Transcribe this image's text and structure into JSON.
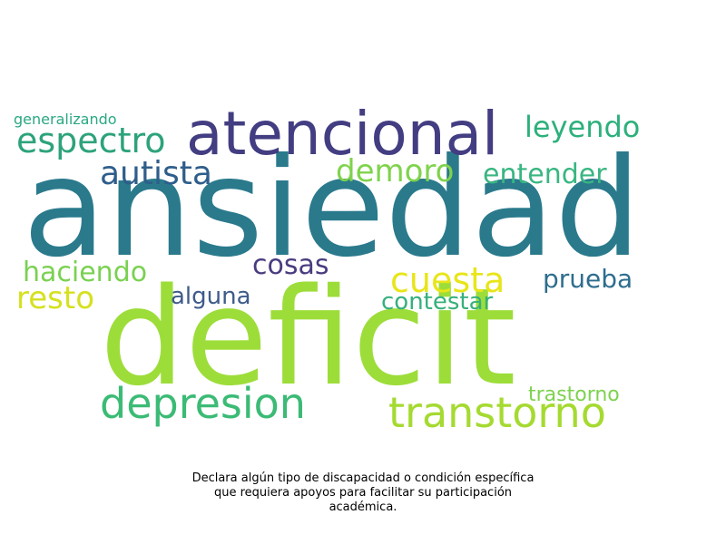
{
  "words": [
    {
      "text": "ansiedad",
      "color": "#2a7a8c"
    },
    {
      "text": "deficit",
      "color": "#9ddd3a"
    },
    {
      "text": "atencional",
      "color": "#433d82"
    },
    {
      "text": "espectro",
      "color": "#2da37a"
    },
    {
      "text": "leyendo",
      "color": "#2db07b"
    },
    {
      "text": "generalizando",
      "color": "#2aa784"
    },
    {
      "text": "autista",
      "color": "#2f5e8b"
    },
    {
      "text": "demoro",
      "color": "#7fd34c"
    },
    {
      "text": "entender",
      "color": "#39b681"
    },
    {
      "text": "haciendo",
      "color": "#7ad151"
    },
    {
      "text": "cosas",
      "color": "#4a3b80"
    },
    {
      "text": "resto",
      "color": "#d5e11f"
    },
    {
      "text": "cuesta",
      "color": "#e8e519"
    },
    {
      "text": "prueba",
      "color": "#2e6d8e"
    },
    {
      "text": "alguna",
      "color": "#3e5b8b"
    },
    {
      "text": "contestar",
      "color": "#35b07c"
    },
    {
      "text": "depresion",
      "color": "#3bbb75"
    },
    {
      "text": "transtorno",
      "color": "#a5da31"
    },
    {
      "text": "trastorno",
      "color": "#7dd250"
    }
  ],
  "caption": {
    "line1": "Declara algún tipo de discapacidad o condición específica",
    "line2": "que requiera apoyos para facilitar su participación",
    "line3": "académica."
  }
}
